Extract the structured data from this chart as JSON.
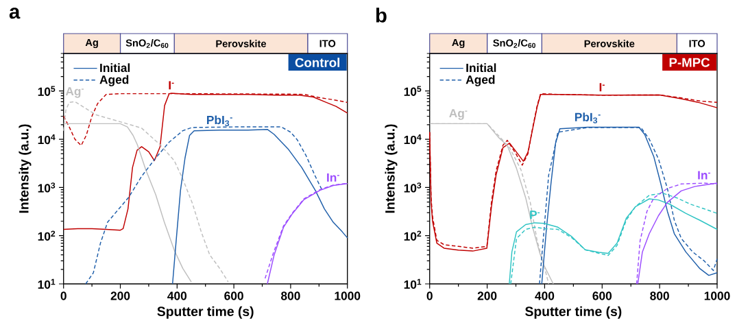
{
  "chart_data": [
    {
      "type": "bar",
      "title": "a",
      "orientation": "horizontal",
      "stacked": true,
      "categories": [
        null
      ],
      "xlim": [
        0,
        1000
      ],
      "tick_labels": false,
      "series": [
        {
          "name": "Ag",
          "color": "#fbe5d6",
          "values": [
            200
          ]
        },
        {
          "name": "SnO$_{2}$/C$_{60}$",
          "color": "#ffffff",
          "values": [
            190
          ]
        },
        {
          "name": "Perovskite",
          "color": "#fbe5d6",
          "values": [
            470
          ]
        },
        {
          "name": "ITO",
          "color": "#ffffff",
          "values": [
            140
          ]
        }
      ]
    },
    {
      "type": "line",
      "subtitle": "Control",
      "xlabel": "Sputter time (s)",
      "ylabel": "Intensity (a.u.)",
      "log": "y",
      "legend": "top left",
      "xlim": [
        0,
        1000
      ],
      "xticks": [
        0,
        200,
        400,
        600,
        800,
        1000
      ],
      "ylim": [
        10,
        600000
      ],
      "yticks": [
        {
          "value": 10,
          "label": "10$^{1}$"
        },
        {
          "value": 100,
          "label": "10$^{2}$"
        },
        {
          "value": 1000,
          "label": "10$^{3}$"
        },
        {
          "value": 10000,
          "label": "10$^{4}$"
        },
        {
          "value": 100000,
          "label": "10$^{5}$"
        }
      ],
      "annotations": [
        {
          "text": "I$^{-}$",
          "x": 380,
          "y": 90000
        },
        {
          "text": "Ag$^{-}$",
          "x": 40,
          "y": 60000
        },
        {
          "text": "PbI$_{3}$$^{-}$",
          "x": 550,
          "y": 15500
        },
        {
          "text": "In$^{-}$",
          "x": 950,
          "y": 1100
        }
      ],
      "series": [
        {
          "color": "#c00000",
          "line_style": "solid",
          "x": [
            0,
            50,
            100,
            150,
            200,
            210,
            227,
            243,
            259,
            275,
            300,
            320,
            340,
            356,
            372,
            380,
            450,
            550,
            650,
            750,
            830,
            880,
            920,
            960,
            1000
          ],
          "values": [
            135,
            140,
            140,
            135,
            130,
            140,
            360,
            2600,
            5900,
            7000,
            5500,
            3600,
            7000,
            50000,
            88000,
            90000,
            85000,
            85000,
            85000,
            82000,
            82000,
            75000,
            60000,
            48000,
            35000
          ]
        },
        {
          "color": "#c00000",
          "line_style": "dashed",
          "x": [
            0,
            20,
            40,
            62,
            80,
            100,
            120,
            150,
            200,
            400,
            600,
            800,
            850,
            900,
            950,
            1000
          ],
          "values": [
            30000,
            18000,
            10000,
            7400,
            12000,
            30000,
            55000,
            85000,
            88000,
            88000,
            87000,
            86000,
            85000,
            73000,
            66000,
            58000
          ]
        },
        {
          "color": "#bfbfbf",
          "line_style": "solid",
          "x": [
            0,
            100,
            200,
            225,
            245,
            260,
            290,
            325,
            355,
            390,
            420,
            450
          ],
          "values": [
            21000,
            21000,
            21000,
            18000,
            12000,
            7700,
            2300,
            700,
            190,
            50,
            21,
            11
          ]
        },
        {
          "color": "#bfbfbf",
          "line_style": "dashed",
          "x": [
            0,
            8,
            20,
            40,
            115,
            200,
            275,
            340,
            390,
            420,
            455,
            485,
            515,
            550,
            580
          ],
          "values": [
            15000,
            40000,
            58000,
            60000,
            32000,
            23000,
            17000,
            7700,
            3600,
            1500,
            450,
            120,
            40,
            21,
            11
          ]
        },
        {
          "name": "Initial",
          "color": "#1f5faa",
          "line_style": "solid",
          "x": [
            384,
            396,
            412,
            428,
            444,
            460,
            550,
            650,
            718,
            742,
            791,
            839,
            887,
            919,
            950,
            982,
            1000
          ],
          "values": [
            10,
            70,
            870,
            4100,
            12000,
            15000,
            15500,
            15500,
            16000,
            12600,
            6300,
            2600,
            870,
            360,
            190,
            120,
            90
          ]
        },
        {
          "name": "Aged",
          "color": "#1f5faa",
          "line_style": "dashed",
          "x": [
            78,
            105,
            130,
            155,
            195,
            230,
            275,
            325,
            372,
            420,
            452,
            600,
            767,
            800,
            823,
            855,
            887,
            910
          ],
          "values": [
            10,
            17,
            70,
            190,
            360,
            630,
            1700,
            4100,
            8700,
            15000,
            17500,
            18000,
            18000,
            14000,
            9800,
            4500,
            1700,
            900
          ]
        },
        {
          "color": "#9c4dff",
          "line_style": "solid",
          "x": [
            718,
            742,
            775,
            807,
            847,
            903,
            950,
            1000
          ],
          "values": [
            10,
            40,
            150,
            290,
            560,
            870,
            1100,
            1200
          ]
        },
        {
          "color": "#9c4dff",
          "line_style": "dashed",
          "x": [
            710,
            740,
            775,
            807,
            847,
            903,
            950,
            1000
          ],
          "values": [
            13,
            45,
            160,
            300,
            580,
            900,
            1120,
            1220
          ]
        }
      ]
    },
    {
      "type": "bar",
      "title": "b",
      "orientation": "horizontal",
      "stacked": true,
      "categories": [
        null
      ],
      "xlim": [
        0,
        1000
      ],
      "tick_labels": false,
      "series": [
        {
          "name": "Ag",
          "color": "#fbe5d6",
          "values": [
            200
          ]
        },
        {
          "name": "SnO$_{2}$/C$_{60}$",
          "color": "#ffffff",
          "values": [
            190
          ]
        },
        {
          "name": "Perovskite",
          "color": "#fbe5d6",
          "values": [
            470
          ]
        },
        {
          "name": "ITO",
          "color": "#ffffff",
          "values": [
            140
          ]
        }
      ]
    },
    {
      "type": "line",
      "subtitle": "P-MPC",
      "xlabel": "Sputter time (s)",
      "ylabel": "Intensity (a.u.)",
      "log": "y",
      "legend": "top left",
      "xlim": [
        0,
        1000
      ],
      "xticks": [
        0,
        200,
        400,
        600,
        800,
        1000
      ],
      "ylim": [
        10,
        600000
      ],
      "yticks": [
        {
          "value": 10,
          "label": "10$^{1}$"
        },
        {
          "value": 100,
          "label": "10$^{2}$"
        },
        {
          "value": 1000,
          "label": "10$^{3}$"
        },
        {
          "value": 10000,
          "label": "10$^{4}$"
        },
        {
          "value": 100000,
          "label": "10$^{5}$"
        }
      ],
      "annotations": [
        {
          "text": "I$^{-}$",
          "x": 600,
          "y": 82000
        },
        {
          "text": "Ag$^{-}$",
          "x": 100,
          "y": 21000
        },
        {
          "text": "PbI$_{3}$$^{-}$",
          "x": 550,
          "y": 17800
        },
        {
          "text": "In$^{-}$",
          "x": 955,
          "y": 1230
        },
        {
          "text": "P$^{-}$",
          "x": 366,
          "y": 185
        }
      ],
      "series": [
        {
          "color": "#c00000",
          "line_style": "solid",
          "x": [
            0,
            5,
            10,
            25,
            50,
            100,
            150,
            199,
            215,
            231,
            255,
            278,
            302,
            326,
            342,
            358,
            374,
            386,
            450,
            600,
            800,
            875,
            940,
            1000
          ],
          "values": [
            14000,
            500,
            200,
            70,
            55,
            50,
            48,
            55,
            400,
            1800,
            6700,
            8300,
            5400,
            3500,
            5400,
            16000,
            47000,
            85000,
            85000,
            82000,
            83000,
            69000,
            57000,
            45000
          ]
        },
        {
          "color": "#c00000",
          "line_style": "dashed",
          "x": [
            0,
            5,
            10,
            25,
            50,
            100,
            150,
            199,
            215,
            231,
            255,
            270,
            300,
            322,
            342,
            358,
            374,
            386,
            450,
            600,
            800,
            875,
            940,
            1000
          ],
          "values": [
            14000,
            600,
            250,
            80,
            65,
            60,
            55,
            60,
            500,
            2200,
            7500,
            9500,
            5000,
            2900,
            5000,
            17000,
            50000,
            88000,
            85000,
            82000,
            83000,
            72000,
            62000,
            58000
          ]
        },
        {
          "color": "#bfbfbf",
          "line_style": "solid",
          "x": [
            0,
            100,
            200,
            239,
            270,
            302,
            334,
            358,
            382,
            398,
            430
          ],
          "values": [
            21000,
            21000,
            21000,
            11000,
            7400,
            2500,
            610,
            150,
            46,
            24,
            10
          ]
        },
        {
          "color": "#bfbfbf",
          "line_style": "dashed",
          "x": [
            0,
            100,
            200,
            239,
            278,
            318,
            350,
            374,
            398,
            414
          ],
          "values": [
            21000,
            21000,
            21000,
            12000,
            6700,
            2300,
            490,
            78,
            24,
            10
          ]
        },
        {
          "name": "Initial",
          "color": "#1f5faa",
          "line_style": "solid",
          "x": [
            390,
            406,
            422,
            438,
            453,
            550,
            650,
            728,
            748,
            780,
            804,
            827,
            851,
            891,
            939,
            971,
            1000
          ],
          "values": [
            10,
            135,
            1200,
            8300,
            16500,
            17800,
            17800,
            17800,
            12600,
            4300,
            1200,
            320,
            110,
            46,
            21,
            15,
            17
          ]
        },
        {
          "name": "Aged",
          "color": "#1f5faa",
          "line_style": "dashed",
          "x": [
            382,
            398,
            414,
            430,
            446,
            550,
            650,
            735,
            764,
            796,
            827,
            851,
            875,
            915,
            955,
            987,
            1000
          ],
          "values": [
            10,
            135,
            1800,
            4800,
            14000,
            17500,
            17500,
            17500,
            10000,
            3900,
            950,
            210,
            88,
            46,
            30,
            19,
            33
          ]
        },
        {
          "color": "#30c4c4",
          "line_style": "solid",
          "x": [
            277,
            286,
            302,
            334,
            366,
            398,
            446,
            493,
            541,
            589,
            621,
            652,
            684,
            716,
            764,
            796,
            835,
            891,
            939,
            1000
          ],
          "values": [
            10,
            46,
            120,
            170,
            185,
            180,
            150,
            97,
            51,
            45,
            43,
            70,
            230,
            400,
            580,
            550,
            450,
            290,
            210,
            135
          ]
        },
        {
          "color": "#30c4c4",
          "line_style": "dashed",
          "x": [
            282,
            302,
            334,
            366,
            398,
            446,
            493,
            541,
            589,
            621,
            652,
            684,
            716,
            764,
            811,
            859,
            907,
            955,
            1000
          ],
          "values": [
            10,
            87,
            135,
            150,
            140,
            135,
            92,
            51,
            43,
            39,
            63,
            210,
            400,
            690,
            760,
            610,
            450,
            360,
            290
          ]
        },
        {
          "color": "#9c4dff",
          "line_style": "solid",
          "x": [
            724,
            740,
            764,
            796,
            827,
            875,
            923,
            1000
          ],
          "values": [
            10,
            46,
            110,
            260,
            490,
            850,
            1050,
            1230
          ]
        },
        {
          "color": "#9c4dff",
          "line_style": "dashed",
          "x": [
            720,
            732,
            756,
            780,
            827,
            875,
            955,
            1000
          ],
          "values": [
            10,
            78,
            320,
            610,
            950,
            1180,
            1230,
            1170
          ]
        }
      ]
    }
  ]
}
